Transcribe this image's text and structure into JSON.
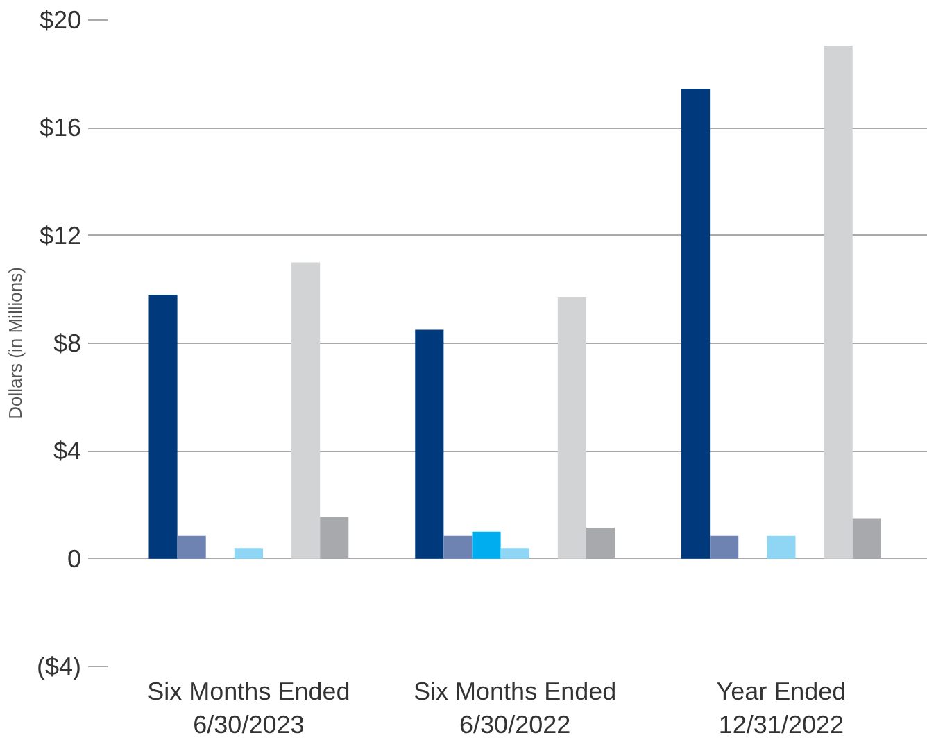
{
  "chart_data": {
    "type": "bar",
    "ylabel": "Dollars (in Millions)",
    "categories": [
      "Six Months Ended\n6/30/2023",
      "Six Months Ended\n6/30/2022",
      "Year Ended\n12/31/2022"
    ],
    "series": [
      {
        "color": "#003a7d",
        "values": [
          9.8,
          8.5,
          17.45
        ]
      },
      {
        "color": "#6f83b3",
        "values": [
          0.85,
          0.85,
          0.85
        ]
      },
      {
        "color": "#00aeef",
        "values": [
          null,
          1.0,
          null
        ]
      },
      {
        "color": "#8fd6f5",
        "values": [
          0.4,
          0.4,
          0.85
        ]
      },
      {
        "values": [
          null,
          null,
          null
        ]
      },
      {
        "color": "#d1d3d4",
        "values": [
          11.0,
          9.7,
          19.05
        ]
      },
      {
        "color": "#a7a9ac",
        "values": [
          1.55,
          1.15,
          1.5
        ]
      }
    ],
    "ylim": [
      -4,
      20
    ],
    "yticks": [
      {
        "value": -4,
        "label": "($4)"
      },
      0,
      {
        "value": 4,
        "label": "$4"
      },
      {
        "value": 8,
        "label": "$8"
      },
      {
        "value": 12,
        "label": "$12"
      },
      {
        "value": 16,
        "label": "$16"
      },
      {
        "value": 20,
        "label": "$20"
      }
    ],
    "grid": "y"
  }
}
